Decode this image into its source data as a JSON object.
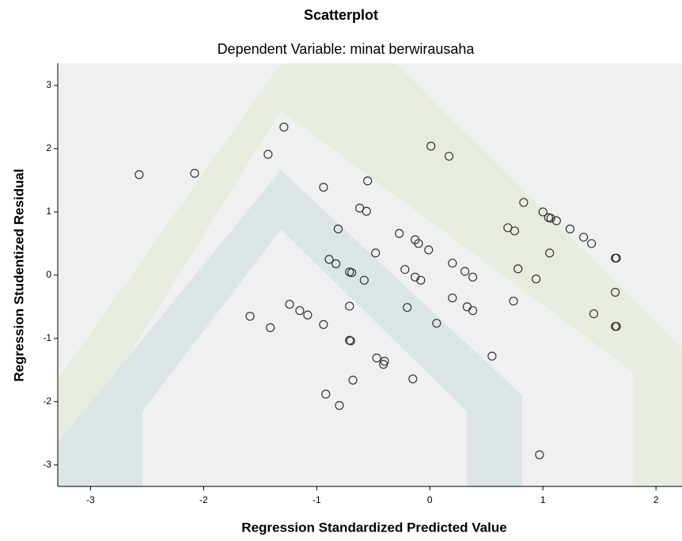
{
  "chart_data": {
    "type": "scatter",
    "title": "Scatterplot",
    "subtitle": "Dependent Variable: minat berwirausaha",
    "x_label": "Regression Standardized Predicted Value",
    "y_label": "Regression Studentized Residual",
    "x": [
      -2.57,
      -2.08,
      -1.29,
      -1.43,
      -0.94,
      -0.55,
      -0.62,
      -0.56,
      -0.81,
      -0.89,
      -0.83,
      -0.71,
      -0.69,
      -0.58,
      -0.48,
      -0.27,
      -0.13,
      -0.1,
      -0.01,
      -0.22,
      -0.13,
      -0.08,
      0.01,
      0.17,
      0.2,
      0.31,
      0.38,
      0.2,
      0.33,
      0.38,
      0.06,
      -0.2,
      -0.71,
      -1.24,
      -1.15,
      -1.08,
      -1.59,
      -1.41,
      -0.94,
      -0.71,
      -0.7,
      -0.47,
      -0.4,
      -0.41,
      -0.15,
      -0.68,
      -0.92,
      -0.8,
      0.55,
      0.83,
      0.69,
      0.75,
      1.0,
      1.05,
      1.07,
      1.12,
      1.24,
      1.36,
      1.43,
      1.06,
      0.78,
      0.94,
      0.74,
      1.45,
      1.64,
      1.65,
      1.64,
      1.64,
      1.65,
      0.97
    ],
    "values": [
      1.59,
      1.61,
      2.34,
      1.91,
      1.39,
      1.49,
      1.06,
      1.01,
      0.73,
      0.25,
      0.18,
      0.05,
      0.04,
      -0.08,
      0.35,
      0.66,
      0.56,
      0.5,
      0.4,
      0.09,
      -0.03,
      -0.08,
      2.04,
      1.88,
      0.19,
      0.06,
      -0.03,
      -0.36,
      -0.5,
      -0.56,
      -0.76,
      -0.51,
      -0.49,
      -0.46,
      -0.56,
      -0.63,
      -0.65,
      -0.83,
      -0.78,
      -1.03,
      -1.04,
      -1.31,
      -1.36,
      -1.41,
      -1.64,
      -1.66,
      -1.88,
      -2.06,
      -1.28,
      1.15,
      0.75,
      0.7,
      1.0,
      0.91,
      0.9,
      0.86,
      0.73,
      0.6,
      0.5,
      0.35,
      0.1,
      -0.06,
      -0.41,
      -0.61,
      0.27,
      0.27,
      -0.27,
      -0.81,
      -0.81,
      -2.84
    ],
    "color": "#333333",
    "xlim": [
      -3.29,
      2.23
    ],
    "xticks": [
      -3,
      -2,
      -1,
      0,
      1,
      2
    ],
    "ylim": [
      -3.34,
      3.35
    ],
    "yticks": [
      -3,
      -2,
      -1,
      0,
      1,
      2,
      3
    ]
  }
}
